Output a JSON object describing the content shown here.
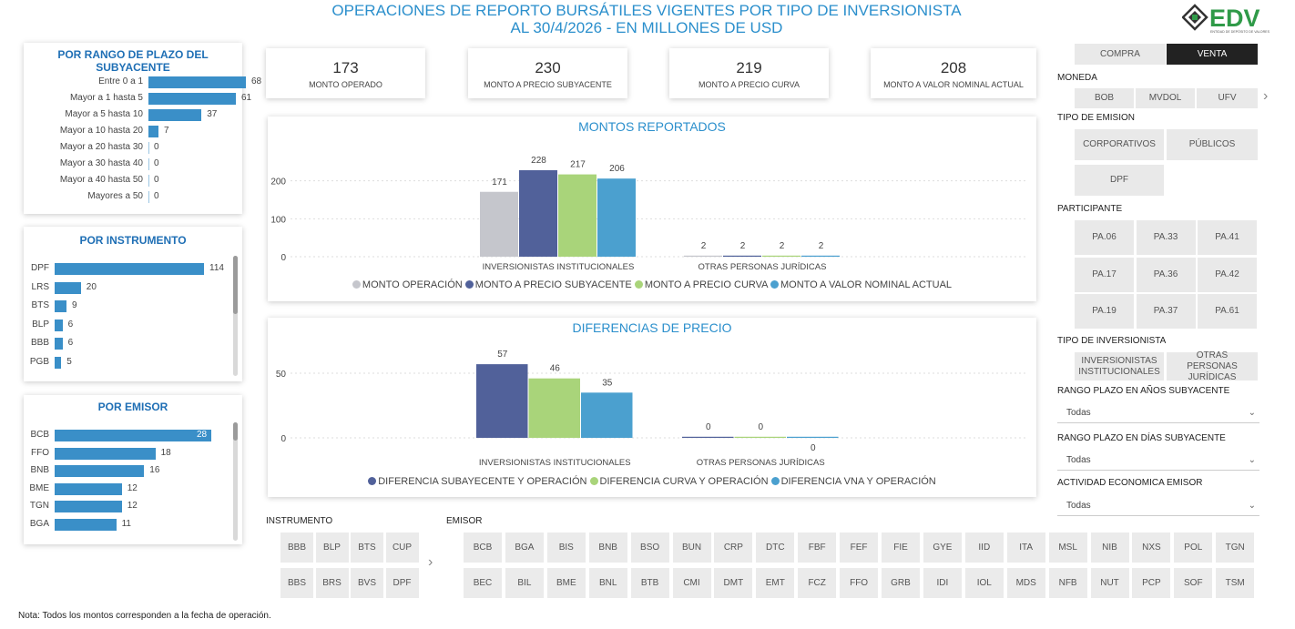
{
  "header": {
    "title_line1": "OPERACIONES DE REPORTO BURSÁTILES VIGENTES POR TIPO DE INVERSIONISTA",
    "title_line2": "AL 30/4/2026 - EN MILLONES DE USD",
    "logo_text": "EDV",
    "logo_subtext": "ENTIDAD DE DEPÓSITO DE VALORES"
  },
  "plazo": {
    "title": "POR RANGO DE PLAZO DEL SUBYACENTE",
    "rows": [
      {
        "label": "Entre 0 a 1",
        "value": 68
      },
      {
        "label": "Mayor a 1 hasta 5",
        "value": 61
      },
      {
        "label": "Mayor a 5 hasta 10",
        "value": 37
      },
      {
        "label": "Mayor a 10 hasta 20",
        "value": 7
      },
      {
        "label": "Mayor a 20 hasta 30",
        "value": 0
      },
      {
        "label": "Mayor a 30 hasta 40",
        "value": 0
      },
      {
        "label": "Mayor a 40 hasta 50",
        "value": 0
      },
      {
        "label": "Mayores a 50",
        "value": 0
      }
    ]
  },
  "instrumento": {
    "title": "POR INSTRUMENTO",
    "rows": [
      {
        "label": "DPF",
        "value": 114
      },
      {
        "label": "LRS",
        "value": 20
      },
      {
        "label": "BTS",
        "value": 9
      },
      {
        "label": "BLP",
        "value": 6
      },
      {
        "label": "BBB",
        "value": 6
      },
      {
        "label": "PGB",
        "value": 5
      }
    ]
  },
  "emisor": {
    "title": "POR EMISOR",
    "rows": [
      {
        "label": "BCB",
        "value": 28
      },
      {
        "label": "FFO",
        "value": 18
      },
      {
        "label": "BNB",
        "value": 16
      },
      {
        "label": "BME",
        "value": 12
      },
      {
        "label": "TGN",
        "value": 12
      },
      {
        "label": "BGA",
        "value": 11
      }
    ]
  },
  "kpis": [
    {
      "value": "173",
      "label": "MONTO OPERADO"
    },
    {
      "value": "230",
      "label": "MONTO A PRECIO SUBYACENTE"
    },
    {
      "value": "219",
      "label": "MONTO A PRECIO CURVA"
    },
    {
      "value": "208",
      "label": "MONTO A VALOR NOMINAL ACTUAL"
    }
  ],
  "colors": {
    "gray": "#c5c6cc",
    "navy": "#51619a",
    "green": "#a9d47a",
    "blue": "#4ba0cf",
    "bar": "#3a8fc8"
  },
  "chart_data": [
    {
      "type": "bar",
      "title": "MONTOS REPORTADOS",
      "categories": [
        "INVERSIONISTAS INSTITUCIONALES",
        "OTRAS PERSONAS JURÍDICAS"
      ],
      "series": [
        {
          "name": "MONTO OPERACIÓN",
          "values": [
            171,
            2
          ]
        },
        {
          "name": "MONTO A PRECIO SUBYACENTE",
          "values": [
            228,
            2
          ]
        },
        {
          "name": "MONTO A PRECIO CURVA",
          "values": [
            217,
            2
          ]
        },
        {
          "name": "MONTO A VALOR NOMINAL ACTUAL",
          "values": [
            206,
            2
          ]
        }
      ],
      "yticks": [
        "0",
        "100",
        "200"
      ],
      "ylim": [
        0,
        240
      ],
      "grid": true,
      "legend": "bottom"
    },
    {
      "type": "bar",
      "title": "DIFERENCIAS DE PRECIO",
      "categories": [
        "INVERSIONISTAS INSTITUCIONALES",
        "OTRAS PERSONAS JURÍDICAS"
      ],
      "series": [
        {
          "name": "DIFERENCIA SUBAYECENTE Y OPERACIÓN",
          "values": [
            57,
            0
          ]
        },
        {
          "name": "DIFERENCIA CURVA Y OPERACIÓN",
          "values": [
            46,
            0
          ]
        },
        {
          "name": "DIFERENCIA VNA Y OPERACIÓN",
          "values": [
            35,
            0
          ]
        }
      ],
      "yticks": [
        "0",
        "50"
      ],
      "ylim": [
        0,
        62
      ],
      "grid": true,
      "legend": "bottom"
    }
  ],
  "filters": {
    "compra": "COMPRA",
    "venta": "VENTA",
    "moneda_label": "MONEDA",
    "moneda": [
      "BOB",
      "MVDOL",
      "UFV"
    ],
    "tipo_emision_label": "TIPO DE EMISION",
    "tipo_emision": [
      "CORPORATIVOS",
      "PÚBLICOS",
      "DPF"
    ],
    "participante_label": "PARTICIPANTE",
    "participante": [
      "PA.06",
      "PA.33",
      "PA.41",
      "PA.17",
      "PA.36",
      "PA.42",
      "PA.19",
      "PA.37",
      "PA.61"
    ],
    "tipo_inversionista_label": "TIPO DE INVERSIONISTA",
    "tipo_inv_1": "INVERSIONISTAS INSTITUCIONALES",
    "tipo_inv_2": "OTRAS PERSONAS JURÍDICAS",
    "rango_anos_label": "RANGO PLAZO EN AÑOS SUBYACENTE",
    "rango_dias_label": "RANGO PLAZO EN DÍAS SUBYACENTE",
    "actividad_label": "ACTIVIDAD ECONOMICA EMISOR",
    "todas": "Todas"
  },
  "slicers": {
    "instrumento_label": "INSTRUMENTO",
    "instrumento": [
      "BBB",
      "BLP",
      "BTS",
      "CUP",
      "BBS",
      "BRS",
      "BVS",
      "DPF"
    ],
    "emisor_label": "EMISOR",
    "emisor_row1": [
      "BCB",
      "BGA",
      "BIS",
      "BNB",
      "BSO",
      "BUN",
      "CRP",
      "DTC",
      "FBF",
      "FEF",
      "FIE",
      "GYE",
      "IID",
      "ITA",
      "MSL",
      "NIB",
      "NXS",
      "POL",
      "TGN"
    ],
    "emisor_row2": [
      "BEC",
      "BIL",
      "BME",
      "BNL",
      "BTB",
      "CMI",
      "DMT",
      "EMT",
      "FCZ",
      "FFO",
      "GRB",
      "IDI",
      "IOL",
      "MDS",
      "NFB",
      "NUT",
      "PCP",
      "SOF",
      "TSM"
    ]
  },
  "note": "Nota: Todos los montos corresponden a la fecha de operación."
}
